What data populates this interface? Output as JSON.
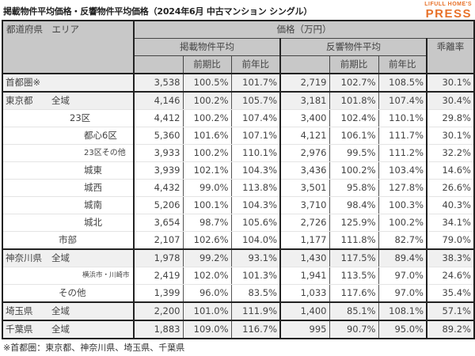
{
  "title": "掲載物件平均価格・反響物件平均価格（2024年6月 中古マンション シングル）",
  "logo": {
    "top": "LIFULL HOME'S",
    "bottom": "PRESS",
    "color": "#e8722a"
  },
  "header": {
    "area": "都道府県　エリア",
    "price": "価格（万円）",
    "listing": "掲載物件平均",
    "response": "反響物件平均",
    "divergence": "乖離率",
    "qoq": "前期比",
    "yoy": "前年比"
  },
  "rows": [
    {
      "pref": "首都圏※",
      "area": "",
      "listing": "3,538",
      "listing_qoq": "100.5%",
      "listing_yoy": "101.7%",
      "response": "2,719",
      "response_qoq": "102.7%",
      "response_yoy": "108.5%",
      "divergence": "30.1%"
    },
    {
      "pref": "東京都",
      "area": "全域",
      "listing": "4,146",
      "listing_qoq": "100.2%",
      "listing_yoy": "105.7%",
      "response": "3,181",
      "response_qoq": "101.8%",
      "response_yoy": "107.4%",
      "divergence": "30.4%"
    },
    {
      "pref": "",
      "area": "23区",
      "listing": "4,412",
      "listing_qoq": "100.2%",
      "listing_yoy": "107.4%",
      "response": "3,400",
      "response_qoq": "102.4%",
      "response_yoy": "110.1%",
      "divergence": "29.8%"
    },
    {
      "pref": "",
      "area": "都心6区",
      "listing": "5,360",
      "listing_qoq": "101.6%",
      "listing_yoy": "107.1%",
      "response": "4,121",
      "response_qoq": "106.1%",
      "response_yoy": "111.7%",
      "divergence": "30.1%"
    },
    {
      "pref": "",
      "area": "23区その他",
      "listing": "3,933",
      "listing_qoq": "100.2%",
      "listing_yoy": "110.1%",
      "response": "2,976",
      "response_qoq": "99.5%",
      "response_yoy": "111.2%",
      "divergence": "32.2%"
    },
    {
      "pref": "",
      "area": "城東",
      "listing": "3,939",
      "listing_qoq": "102.1%",
      "listing_yoy": "104.3%",
      "response": "3,436",
      "response_qoq": "100.2%",
      "response_yoy": "103.4%",
      "divergence": "14.6%"
    },
    {
      "pref": "",
      "area": "城西",
      "listing": "4,432",
      "listing_qoq": "99.0%",
      "listing_yoy": "113.8%",
      "response": "3,501",
      "response_qoq": "95.8%",
      "response_yoy": "127.8%",
      "divergence": "26.6%"
    },
    {
      "pref": "",
      "area": "城南",
      "listing": "5,206",
      "listing_qoq": "100.1%",
      "listing_yoy": "104.3%",
      "response": "3,710",
      "response_qoq": "98.4%",
      "response_yoy": "100.3%",
      "divergence": "40.3%"
    },
    {
      "pref": "",
      "area": "城北",
      "listing": "3,654",
      "listing_qoq": "98.7%",
      "listing_yoy": "105.6%",
      "response": "2,726",
      "response_qoq": "125.9%",
      "response_yoy": "100.2%",
      "divergence": "34.1%"
    },
    {
      "pref": "",
      "area": "市部",
      "listing": "2,107",
      "listing_qoq": "102.6%",
      "listing_yoy": "104.0%",
      "response": "1,177",
      "response_qoq": "111.8%",
      "response_yoy": "82.7%",
      "divergence": "79.0%"
    },
    {
      "pref": "神奈川県",
      "area": "全域",
      "listing": "1,978",
      "listing_qoq": "99.2%",
      "listing_yoy": "93.1%",
      "response": "1,430",
      "response_qoq": "117.5%",
      "response_yoy": "89.4%",
      "divergence": "38.3%"
    },
    {
      "pref": "",
      "area": "横浜市・川崎市",
      "listing": "2,419",
      "listing_qoq": "102.0%",
      "listing_yoy": "101.3%",
      "response": "1,941",
      "response_qoq": "113.5%",
      "response_yoy": "97.0%",
      "divergence": "24.6%"
    },
    {
      "pref": "",
      "area": "その他",
      "listing": "1,399",
      "listing_qoq": "96.0%",
      "listing_yoy": "83.5%",
      "response": "1,033",
      "response_qoq": "117.6%",
      "response_yoy": "97.0%",
      "divergence": "35.4%"
    },
    {
      "pref": "埼玉県",
      "area": "全域",
      "listing": "2,200",
      "listing_qoq": "101.0%",
      "listing_yoy": "111.9%",
      "response": "1,400",
      "response_qoq": "85.1%",
      "response_yoy": "108.1%",
      "divergence": "57.1%"
    },
    {
      "pref": "千葉県",
      "area": "全域",
      "listing": "1,883",
      "listing_qoq": "109.0%",
      "listing_yoy": "116.7%",
      "response": "995",
      "response_qoq": "90.7%",
      "response_yoy": "95.0%",
      "divergence": "89.2%"
    }
  ],
  "note": "※首都圏：東京都、神奈川県、埼玉県、千葉県"
}
